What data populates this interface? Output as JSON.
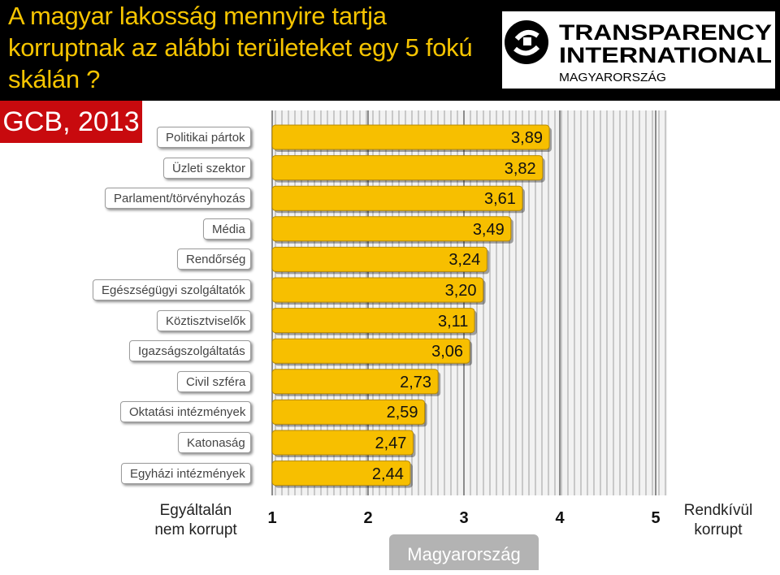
{
  "header": {
    "title": "A magyar lakosság mennyire tartja korruptnak az alábbi területeket egy 5 fokú skálán ?",
    "badge": "GCB, 2013"
  },
  "logo": {
    "name": "TRANSPARENCY",
    "name2": "INTERNATIONAL",
    "sub": "MAGYARORSZÁG"
  },
  "colors": {
    "title": "#f5c400",
    "header_bg": "#000000",
    "badge_bg": "#c80a0e",
    "bar": "#f7bf00",
    "bar_edge": "#b78a00",
    "country_badge": "#b3b3b3"
  },
  "chart_data": {
    "type": "bar",
    "orientation": "horizontal",
    "categories": [
      "Politikai pártok",
      "Üzleti szektor",
      "Parlament/törvényhozás",
      "Média",
      "Rendőrség",
      "Egészségügyi szolgáltatók",
      "Köztisztviselők",
      "Igazságszolgáltatás",
      "Civil szféra",
      "Oktatási intézmények",
      "Katonaság",
      "Egyházi intézmények"
    ],
    "values": [
      3.89,
      3.82,
      3.61,
      3.49,
      3.24,
      3.2,
      3.11,
      3.06,
      2.73,
      2.59,
      2.47,
      2.44
    ],
    "value_labels": [
      "3,89",
      "3,82",
      "3,61",
      "3,49",
      "3,24",
      "3,20",
      "3,11",
      "3,06",
      "2,73",
      "2,59",
      "2,47",
      "2,44"
    ],
    "xlim": [
      1,
      5
    ],
    "x_ticks": [
      "1",
      "2",
      "3",
      "4",
      "5"
    ],
    "x_low_label": "Egyáltalán nem korrupt",
    "x_high_label": "Rendkívül korrupt",
    "series_label": "Magyarország",
    "grid": true
  }
}
